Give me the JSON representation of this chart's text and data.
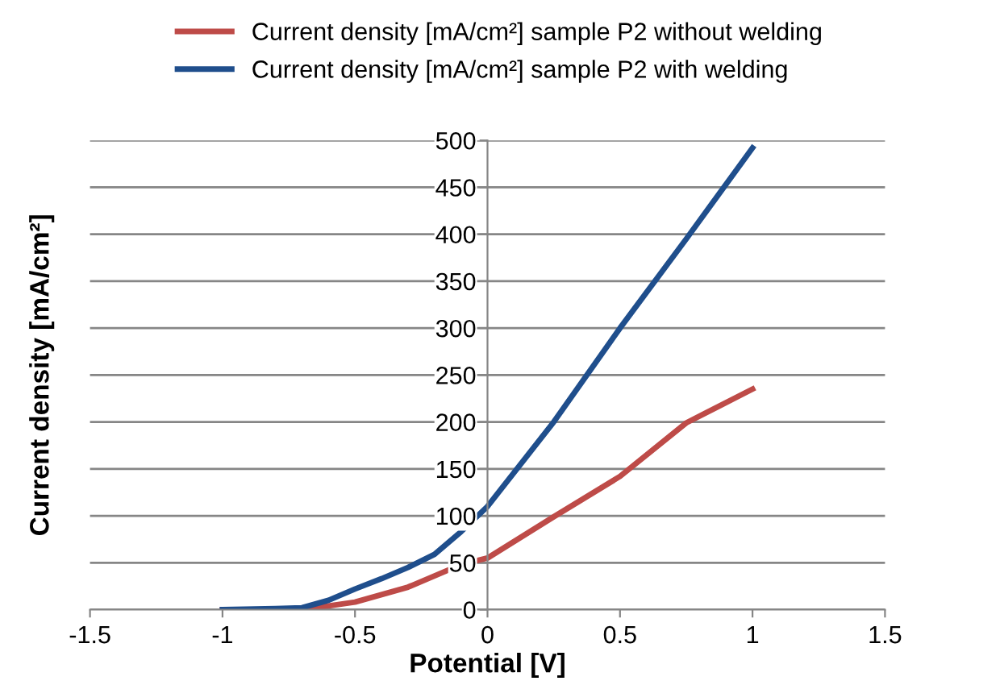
{
  "chart_data": {
    "type": "line",
    "xlabel": "Potential [V]",
    "ylabel": "Current density [mA/cm²]",
    "xlim": [
      -1.5,
      1.5
    ],
    "xticks": [
      -1.5,
      -1,
      -0.5,
      0,
      0.5,
      1,
      1.5
    ],
    "ylim": [
      0,
      500
    ],
    "yticks": [
      0,
      50,
      100,
      150,
      200,
      250,
      300,
      350,
      400,
      450,
      500
    ],
    "grid": "y",
    "legend": "top",
    "marker": "none",
    "line_style": "solid",
    "series": [
      {
        "name": "Current density [mA/cm²] sample P2 without welding",
        "color": "#be4b48",
        "x": [
          -1,
          -0.8,
          -0.7,
          -0.6,
          -0.5,
          -0.4,
          -0.3,
          -0.2,
          -0.1,
          0,
          0.25,
          0.5,
          0.75,
          1
        ],
        "values": [
          0,
          0,
          1,
          4,
          8,
          16,
          24,
          36,
          48,
          55,
          99,
          142,
          199,
          235
        ]
      },
      {
        "name": "Current density [mA/cm²] sample P2 with welding",
        "color": "#1f4e8c",
        "x": [
          -1,
          -0.8,
          -0.7,
          -0.6,
          -0.5,
          -0.4,
          -0.3,
          -0.2,
          -0.1,
          0,
          0.25,
          0.5,
          0.75,
          1
        ],
        "values": [
          0,
          1,
          2,
          10,
          22,
          33,
          45,
          59,
          83,
          110,
          200,
          300,
          395,
          492
        ]
      }
    ]
  }
}
